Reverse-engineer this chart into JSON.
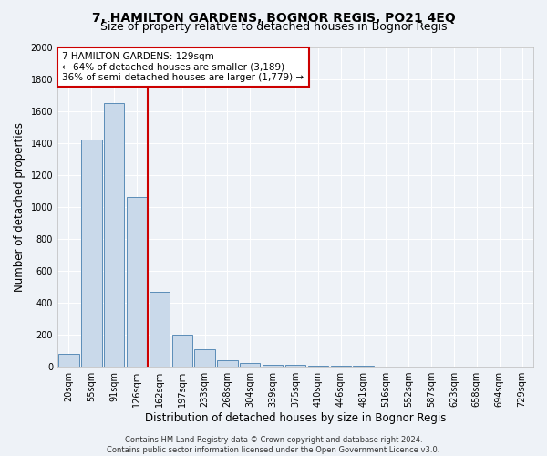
{
  "title": "7, HAMILTON GARDENS, BOGNOR REGIS, PO21 4EQ",
  "subtitle": "Size of property relative to detached houses in Bognor Regis",
  "xlabel": "Distribution of detached houses by size in Bognor Regis",
  "ylabel": "Number of detached properties",
  "categories": [
    "20sqm",
    "55sqm",
    "91sqm",
    "126sqm",
    "162sqm",
    "197sqm",
    "233sqm",
    "268sqm",
    "304sqm",
    "339sqm",
    "375sqm",
    "410sqm",
    "446sqm",
    "481sqm",
    "516sqm",
    "552sqm",
    "587sqm",
    "623sqm",
    "658sqm",
    "694sqm",
    "729sqm"
  ],
  "values": [
    80,
    1420,
    1650,
    1060,
    470,
    200,
    110,
    40,
    25,
    10,
    10,
    8,
    5,
    5,
    3,
    2,
    2,
    1,
    1,
    1,
    1
  ],
  "bar_color": "#c9d9ea",
  "bar_edge_color": "#5b8db8",
  "property_line_x": 3.5,
  "property_line_color": "#cc0000",
  "annotation_line1": "7 HAMILTON GARDENS: 129sqm",
  "annotation_line2": "← 64% of detached houses are smaller (3,189)",
  "annotation_line3": "36% of semi-detached houses are larger (1,779) →",
  "annotation_box_color": "#cc0000",
  "ylim": [
    0,
    2000
  ],
  "yticks": [
    0,
    200,
    400,
    600,
    800,
    1000,
    1200,
    1400,
    1600,
    1800,
    2000
  ],
  "footer_line1": "Contains HM Land Registry data © Crown copyright and database right 2024.",
  "footer_line2": "Contains public sector information licensed under the Open Government Licence v3.0.",
  "background_color": "#eef2f7",
  "grid_color": "#ffffff",
  "title_fontsize": 10,
  "subtitle_fontsize": 9,
  "axis_label_fontsize": 8.5,
  "tick_fontsize": 7,
  "annotation_fontsize": 7.5,
  "footer_fontsize": 6
}
